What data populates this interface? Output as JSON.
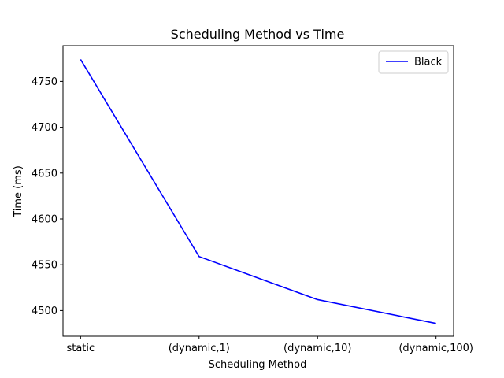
{
  "chart_data": {
    "type": "line",
    "title": "Scheduling Method vs Time",
    "xlabel": "Scheduling Method",
    "ylabel": "Time (ms)",
    "categories": [
      "static",
      "(dynamic,1)",
      "(dynamic,10)",
      "(dynamic,100)"
    ],
    "series": [
      {
        "name": "Black",
        "values": [
          4774,
          4559,
          4512,
          4486
        ],
        "color": "#0000ff"
      }
    ],
    "ylim": [
      4472,
      4789
    ],
    "yticks": [
      4500,
      4550,
      4600,
      4650,
      4700,
      4750
    ],
    "grid": false,
    "legend_position": "top-right"
  }
}
